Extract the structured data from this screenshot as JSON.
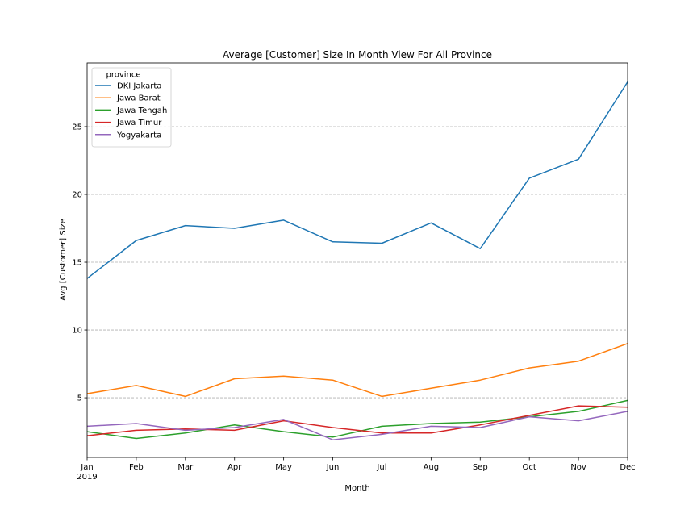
{
  "chart_data": {
    "type": "line",
    "title": "Average [Customer] Size In Month View For All Province",
    "xlabel": "Month",
    "ylabel": "Avg [Customer] Size",
    "categories": [
      "Jan",
      "Feb",
      "Mar",
      "Apr",
      "May",
      "Jun",
      "Jul",
      "Aug",
      "Sep",
      "Oct",
      "Nov",
      "Dec"
    ],
    "year_label": "2019",
    "ylim": [
      0.6,
      29.7
    ],
    "yticks": [
      5,
      10,
      15,
      20,
      25
    ],
    "grid": "horizontal-dashed",
    "legend": {
      "title": "province",
      "placement": "top-left"
    },
    "series": [
      {
        "name": "DKI Jakarta",
        "color": "#1f77b4",
        "values": [
          13.8,
          16.6,
          17.7,
          17.5,
          18.1,
          16.5,
          16.4,
          17.9,
          16.0,
          21.2,
          22.6,
          28.3
        ]
      },
      {
        "name": "Jawa Barat",
        "color": "#ff7f0e",
        "values": [
          5.3,
          5.9,
          5.1,
          6.4,
          6.6,
          6.3,
          5.1,
          5.7,
          6.3,
          7.2,
          7.7,
          9.0
        ]
      },
      {
        "name": "Jawa Tengah",
        "color": "#2ca02c",
        "values": [
          2.5,
          2.0,
          2.4,
          3.0,
          2.5,
          2.1,
          2.9,
          3.1,
          3.2,
          3.6,
          4.0,
          4.8
        ]
      },
      {
        "name": "Jawa Timur",
        "color": "#d62728",
        "values": [
          2.2,
          2.6,
          2.7,
          2.6,
          3.3,
          2.8,
          2.4,
          2.4,
          3.0,
          3.7,
          4.4,
          4.3
        ]
      },
      {
        "name": "Yogyakarta",
        "color": "#9467bd",
        "values": [
          2.9,
          3.1,
          2.6,
          2.8,
          3.4,
          1.9,
          2.3,
          2.9,
          2.8,
          3.6,
          3.3,
          4.0
        ]
      }
    ]
  }
}
